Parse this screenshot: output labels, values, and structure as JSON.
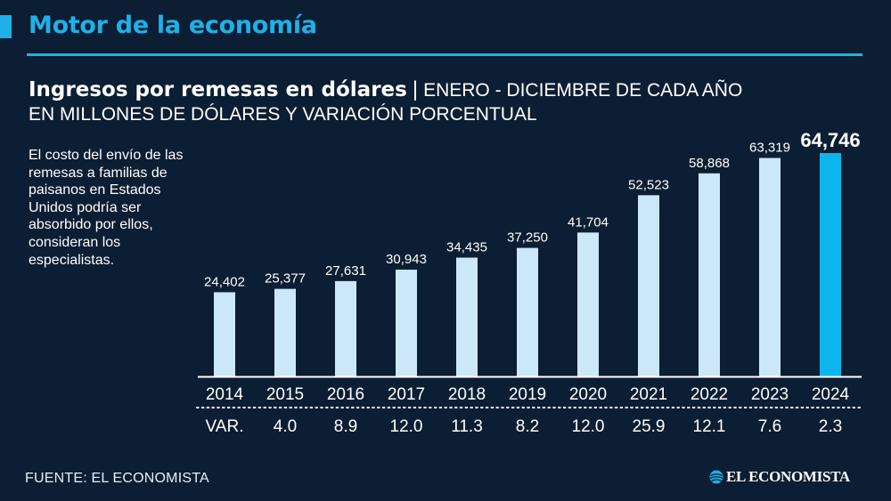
{
  "header": {
    "title": "Motor de la economía"
  },
  "chart_title": {
    "main": "Ingresos por remesas en dólares",
    "separator": "|",
    "period": "ENERO - DICIEMBRE DE CADA AÑO",
    "subtitle": "EN MILLONES DE DÓLARES Y VARIACIÓN PORCENTUAL"
  },
  "note": "El costo del envío de las remesas a familias de paisanos en Estados Unidos podría ser absorbido por ellos, consideran los especialistas.",
  "footer": {
    "source": "FUENTE: EL ECONOMISTA",
    "brand": "EL ECONOMISTA",
    "brand_icon": "globe-logo-icon"
  },
  "colors": {
    "background": "#0c1e33",
    "accent": "#1fb0e8",
    "bar": "#cce8f8",
    "bar_highlight": "#0db5ee"
  },
  "chart_data": {
    "type": "bar",
    "title": "Ingresos por remesas en dólares",
    "subtitle": "EN MILLONES DE DÓLARES Y VARIACIÓN PORCENTUAL",
    "xlabel": "",
    "ylabel": "Millones de dólares",
    "ylim": [
      0,
      64746
    ],
    "grid": false,
    "categories": [
      "2014",
      "2015",
      "2016",
      "2017",
      "2018",
      "2019",
      "2020",
      "2021",
      "2022",
      "2023",
      "2024"
    ],
    "values": [
      24402,
      25377,
      27631,
      30943,
      34435,
      37250,
      41704,
      52523,
      58868,
      63319,
      64746
    ],
    "value_labels": [
      "24,402",
      "25,377",
      "27,631",
      "30,943",
      "34,435",
      "37,250",
      "41,704",
      "52,523",
      "58,868",
      "63,319",
      "64,746"
    ],
    "highlight_index": 10,
    "variation": {
      "label": "VAR.",
      "values": [
        null,
        4.0,
        8.9,
        12.0,
        11.3,
        8.2,
        12.0,
        25.9,
        12.1,
        7.6,
        2.3
      ],
      "value_labels": [
        "",
        "4.0",
        "8.9",
        "12.0",
        "11.3",
        "8.2",
        "12.0",
        "25.9",
        "12.1",
        "7.6",
        "2.3"
      ]
    }
  }
}
